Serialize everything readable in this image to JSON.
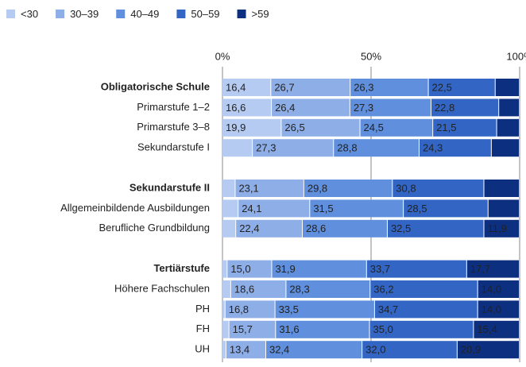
{
  "chart_data": {
    "type": "stacked_bar_horizontal",
    "categories": [
      "Obligatorische Schule",
      "Primarstufe 1–2",
      "Primarstufe 3–8",
      "Sekundarstufe I",
      null,
      "Sekundarstufe II",
      "Allgemeinbildende Ausbildungen",
      "Berufliche Grundbildung",
      null,
      "Tertiärstufe",
      "Höhere Fachschulen",
      "PH",
      "FH",
      "UH"
    ],
    "series": [
      {
        "name": "<30",
        "color": "#b6cbf1",
        "values": [
          16.4,
          16.6,
          19.9,
          10.2,
          null,
          4.4,
          5.4,
          4.6,
          null,
          1.7,
          2.9,
          1.0,
          2.3,
          1.3
        ],
        "value_labels": [
          "16,4",
          "16,6",
          "19,9",
          null,
          null,
          null,
          null,
          null,
          null,
          null,
          null,
          null,
          null,
          null
        ]
      },
      {
        "name": "30–39",
        "color": "#8eaee8",
        "values": [
          26.7,
          26.4,
          26.5,
          27.3,
          null,
          23.1,
          24.1,
          22.4,
          null,
          15.0,
          18.6,
          16.8,
          15.7,
          13.4
        ],
        "value_labels": [
          "26,7",
          "26,4",
          "26,5",
          "27,3",
          null,
          "23,1",
          "24,1",
          "22,4",
          null,
          "15,0",
          "18,6",
          "16,8",
          "15,7",
          "13,4"
        ]
      },
      {
        "name": "40–49",
        "color": "#5f8fdd",
        "values": [
          26.3,
          27.3,
          24.5,
          28.8,
          null,
          29.8,
          31.5,
          28.6,
          null,
          31.9,
          28.3,
          33.5,
          31.6,
          32.4
        ],
        "value_labels": [
          "26,3",
          "27,3",
          "24,5",
          "28,8",
          null,
          "29,8",
          "31,5",
          "28,6",
          null,
          "31,9",
          "28,3",
          "33,5",
          "31,6",
          "32,4"
        ]
      },
      {
        "name": "50–59",
        "color": "#3366c4",
        "values": [
          22.5,
          22.8,
          21.5,
          24.3,
          null,
          30.8,
          28.5,
          32.5,
          null,
          33.7,
          36.2,
          34.7,
          35.0,
          32.0
        ],
        "value_labels": [
          "22,5",
          "22,8",
          "21,5",
          "24,3",
          null,
          "30,8",
          "28,5",
          "32,5",
          null,
          "33,7",
          "36,2",
          "34,7",
          "35,0",
          "32,0"
        ]
      },
      {
        "name": ">59",
        "color": "#0d2f80",
        "values": [
          8.1,
          6.9,
          7.6,
          9.4,
          null,
          11.9,
          10.5,
          11.9,
          null,
          17.7,
          14.0,
          14.0,
          15.4,
          20.9
        ],
        "value_labels": [
          null,
          null,
          null,
          null,
          null,
          null,
          null,
          "11,9",
          null,
          "17,7",
          "14,0",
          "14,0",
          "15,4",
          "20,9"
        ]
      }
    ],
    "xlim": [
      0,
      100
    ],
    "xticks": [
      {
        "value": 0,
        "label": "0%"
      },
      {
        "value": 50,
        "label": "50%"
      },
      {
        "value": 100,
        "label": "100%"
      }
    ],
    "grid": true,
    "legend": "top-left"
  }
}
